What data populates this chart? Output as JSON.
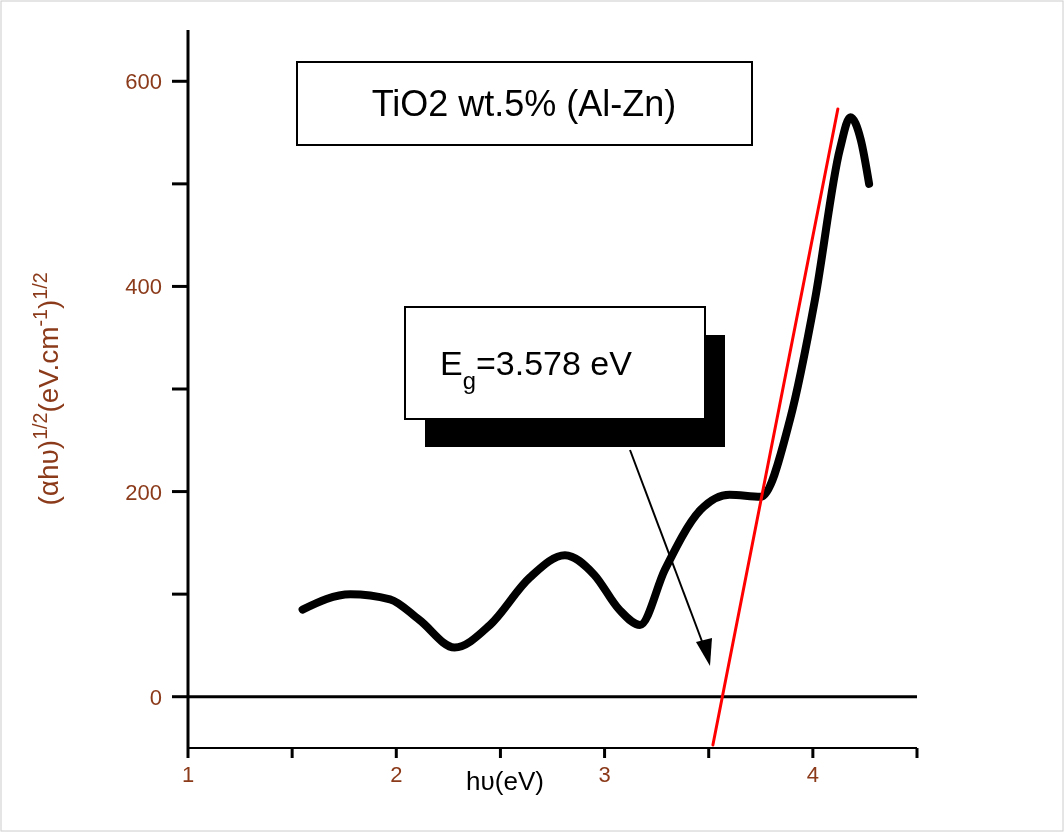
{
  "chart_data": {
    "type": "line",
    "title": "TiO2 wt.5% (Al-Zn)",
    "xlabel": "hυ(eV)",
    "ylabel": "(αhυ)$^{1/2}$(eV.cm$^{-1}$)$^{1/2}$",
    "xlim": [
      1,
      4.5
    ],
    "ylim": [
      -50,
      650
    ],
    "xticks": [
      1,
      {
        "value": 1.5,
        "label": null
      },
      2,
      {
        "value": 2.5,
        "label": null
      },
      3,
      {
        "value": 3.5,
        "label": null
      },
      4,
      {
        "value": 4.5,
        "label": null
      }
    ],
    "yticks": [
      0,
      {
        "value": 100,
        "label": null
      },
      200,
      {
        "value": 300,
        "label": null
      },
      400,
      {
        "value": 500,
        "label": null
      },
      600
    ],
    "grid": false,
    "ref_lines": [
      {
        "axis": "y",
        "value": 0,
        "color": "#000000"
      }
    ],
    "series": [
      {
        "color": "#000000",
        "x": [
          1.55,
          1.78,
          1.97,
          2.11,
          2.28,
          2.45,
          2.64,
          2.81,
          2.95,
          3.07,
          3.17,
          3.29,
          3.46,
          3.6,
          3.75,
          3.89,
          4.01,
          4.13,
          4.18,
          4.23,
          4.27
        ],
        "values": [
          85,
          100,
          95,
          75,
          48,
          70,
          116,
          138,
          119,
          85,
          70,
          124,
          182,
          197,
          195,
          270,
          387,
          534,
          565,
          543,
          500
        ]
      },
      {
        "type": "line",
        "color": "#ff0000",
        "x": [
          3.52,
          4.12
        ],
        "values": [
          -47,
          573
        ]
      }
    ],
    "annotations": [
      "E$_{g}$=3.578 eV"
    ]
  }
}
